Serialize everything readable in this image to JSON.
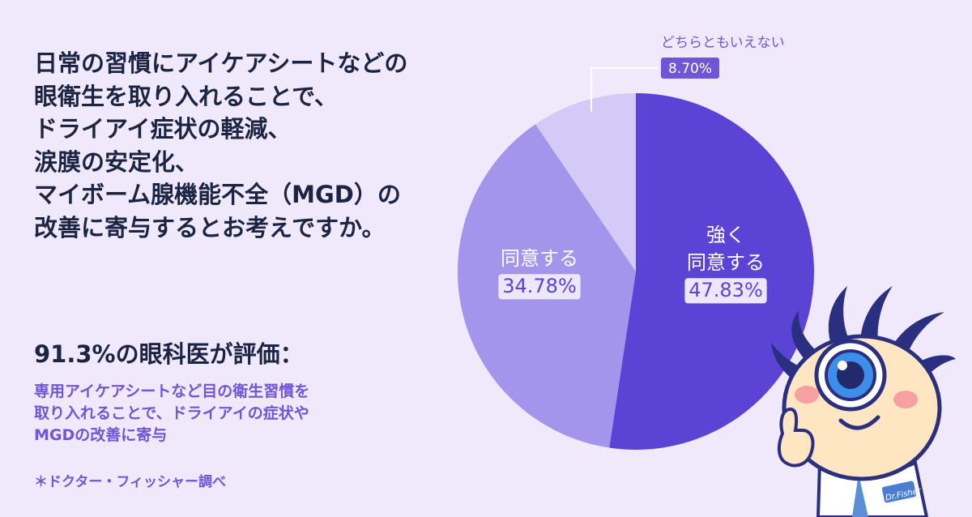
{
  "question_lines": [
    "日常の習慣にアイケアシートなどの",
    "眼衛生を取り入れることで、",
    "ドライアイ症状の軽減、",
    "涙膜の安定化、",
    "マイボーム腺機能不全（MGD）の",
    "改善に寄与するとお考えですか。"
  ],
  "headline": "91.3%の眼科医が評価：",
  "subtext_lines": [
    "専用アイケアシートなど目の衛生習慣を",
    "取り入れることで、ドライアイの症状や",
    "MGDの改善に寄与"
  ],
  "source": "＊ドクター・フィッシャー調べ",
  "chart_data": {
    "type": "pie",
    "slices": [
      {
        "label": [
          "強く",
          "同意する"
        ],
        "value": 47.83,
        "value_label": "47.83%",
        "color": "#5b43d6"
      },
      {
        "label": [
          "同意する"
        ],
        "value": 34.78,
        "value_label": "34.78%",
        "color": "#a495ec"
      },
      {
        "label": [
          "どちらともいえない"
        ],
        "value": 8.7,
        "value_label": "8.70%",
        "color": "#d3caf7"
      }
    ]
  },
  "mascot": {
    "coat_badge": "Dr.Fisher"
  }
}
